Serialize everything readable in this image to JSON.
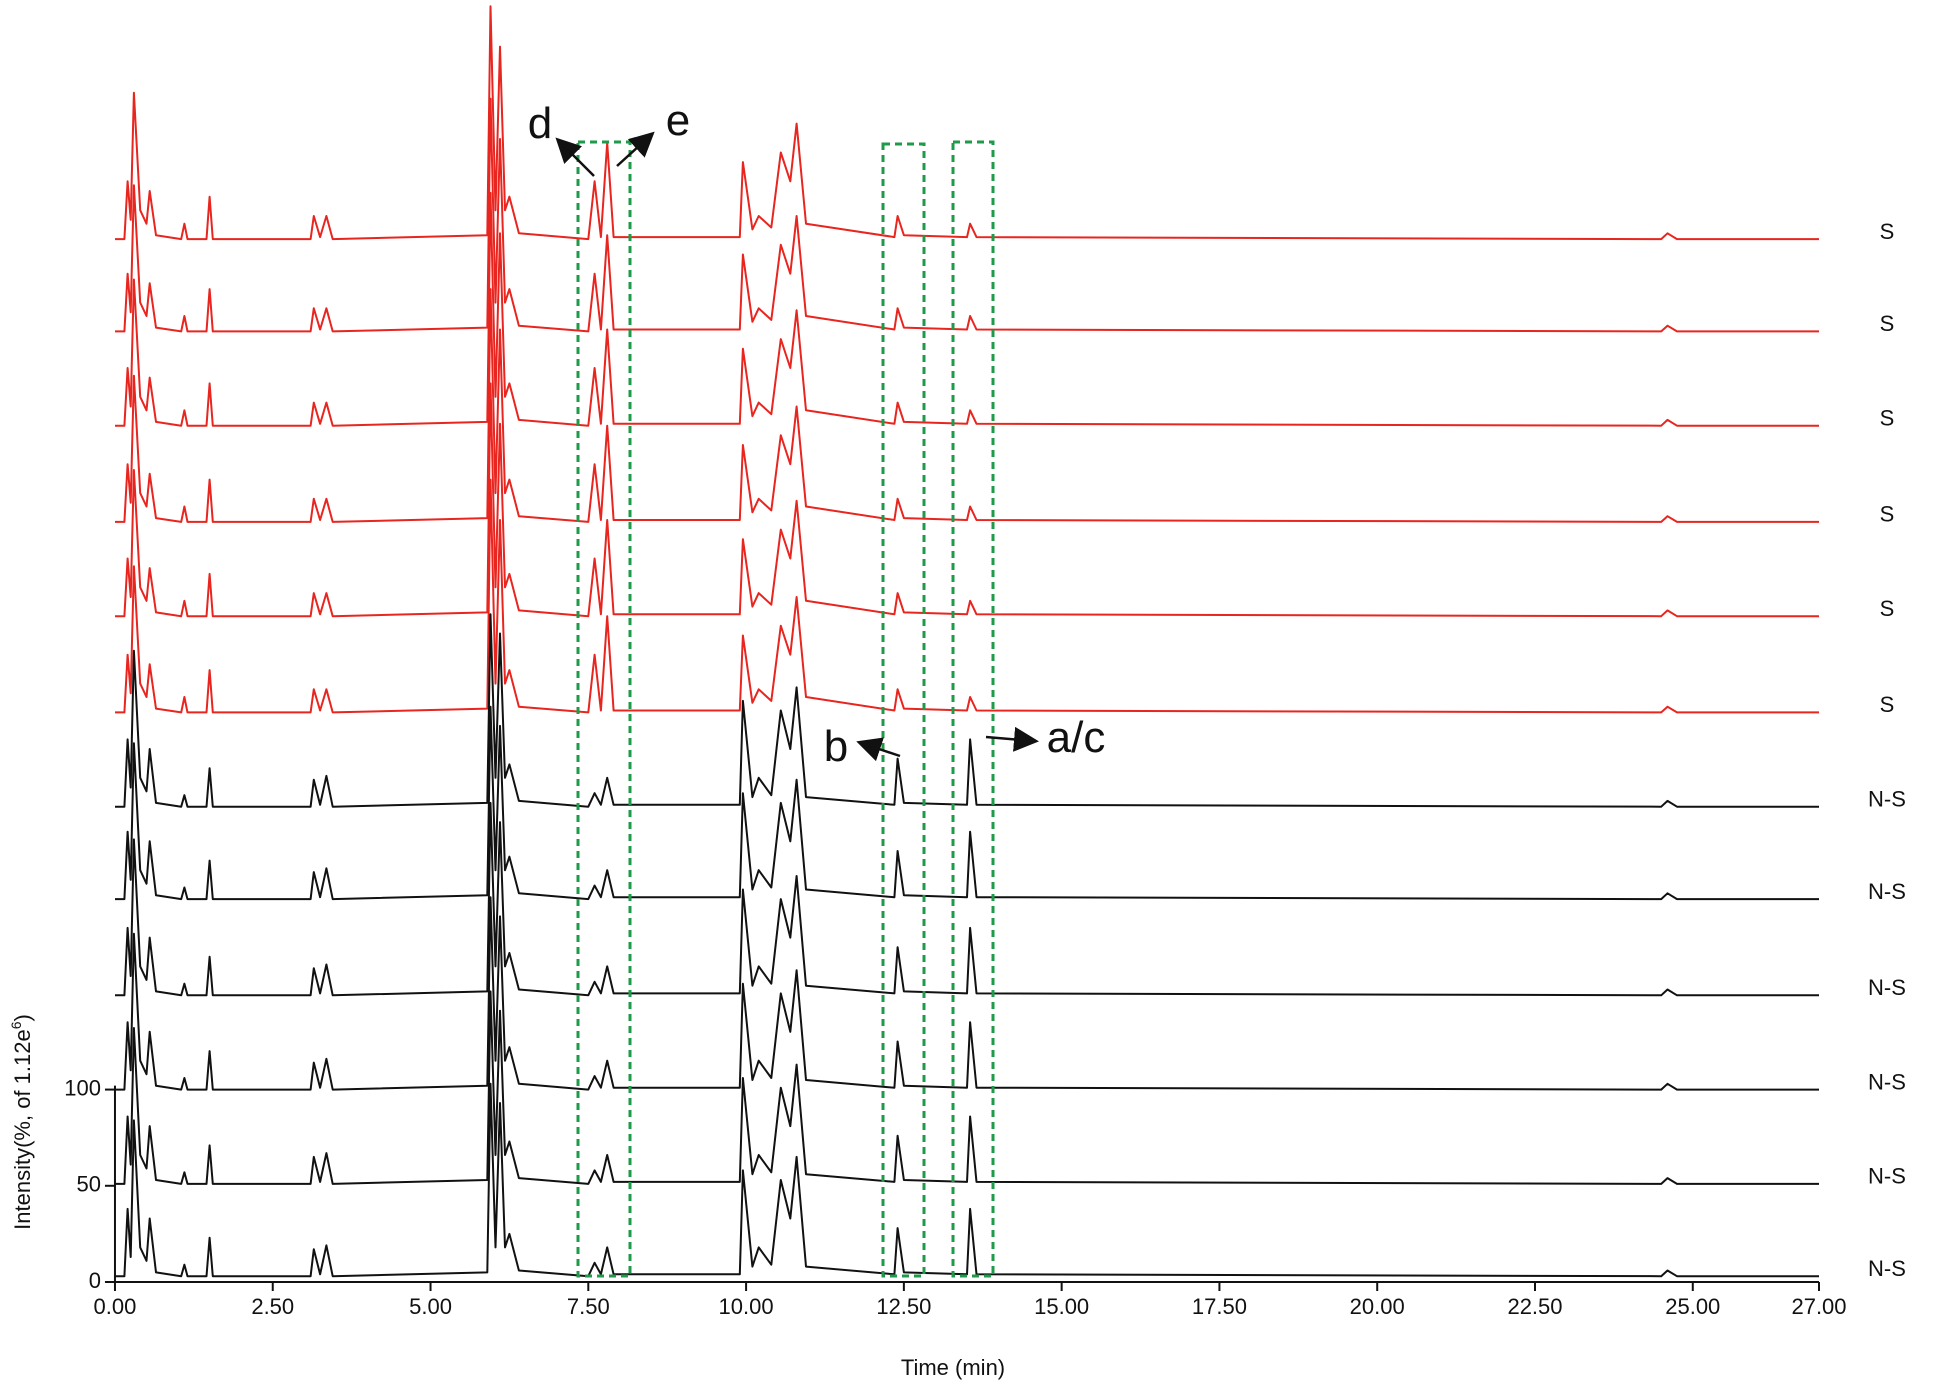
{
  "chart_data": {
    "type": "line",
    "x_label": "Time (min)",
    "y_label": "Intensity(%, of 1.12e",
    "y_label_sup": "6",
    "y_label_end": ")",
    "xlim": [
      -0.15,
      27
    ],
    "ylim": [
      0,
      660
    ],
    "xticks": [
      {
        "value": 0,
        "label": "0.00"
      },
      {
        "value": 2.5,
        "label": "2.50"
      },
      {
        "value": 5,
        "label": "5.00"
      },
      {
        "value": 7.5,
        "label": "7.50"
      },
      {
        "value": 10,
        "label": "10.00"
      },
      {
        "value": 12.5,
        "label": "12.50"
      },
      {
        "value": 15,
        "label": "15.00"
      },
      {
        "value": 17.5,
        "label": "17.50"
      },
      {
        "value": 20,
        "label": "20.00"
      },
      {
        "value": 22.5,
        "label": "22.50"
      },
      {
        "value": 25,
        "label": "25.00"
      },
      {
        "value": 27,
        "label": "27.00"
      }
    ],
    "yticks": [
      0,
      50,
      100
    ],
    "annotations": [
      "d",
      "e",
      "b",
      "a/c"
    ],
    "x": [
      0,
      0.15,
      0.2,
      0.25,
      0.3,
      0.4,
      0.5,
      0.55,
      0.65,
      1.05,
      1.1,
      1.15,
      1.45,
      1.5,
      1.55,
      3.1,
      3.15,
      3.25,
      3.35,
      3.45,
      5.9,
      5.95,
      6.03,
      6.1,
      6.18,
      6.25,
      6.4,
      7.5,
      7.6,
      7.7,
      7.8,
      7.9,
      9.9,
      9.95,
      10.1,
      10.2,
      10.4,
      10.55,
      10.7,
      10.8,
      10.95,
      12.35,
      12.4,
      12.5,
      13.5,
      13.55,
      13.65,
      24.5,
      24.6,
      24.75,
      27
    ],
    "series": [
      {
        "name": "S",
        "color": "#e8251f",
        "values": [
          542,
          542,
          572,
          552,
          618,
          557,
          550,
          567,
          544,
          542,
          550,
          542,
          542,
          564,
          542,
          542,
          554,
          543,
          554,
          542,
          544,
          663,
          557,
          642,
          557,
          564,
          545,
          542,
          572,
          543,
          592,
          543,
          543,
          582,
          547,
          554,
          548,
          587,
          572,
          602,
          550,
          543,
          554,
          544,
          543,
          550,
          543,
          542,
          545,
          542,
          542
        ]
      },
      {
        "name": "S",
        "color": "#e8251f",
        "values": [
          494,
          494,
          524,
          504,
          570,
          509,
          502,
          519,
          496,
          494,
          502,
          494,
          494,
          516,
          494,
          494,
          506,
          495,
          506,
          494,
          496,
          615,
          509,
          594,
          509,
          516,
          497,
          494,
          524,
          495,
          544,
          495,
          495,
          534,
          499,
          506,
          500,
          539,
          524,
          554,
          502,
          495,
          506,
          496,
          495,
          502,
          495,
          494,
          497,
          494,
          494
        ]
      },
      {
        "name": "S",
        "color": "#e8251f",
        "values": [
          445,
          445,
          475,
          455,
          521,
          460,
          453,
          470,
          447,
          445,
          453,
          445,
          445,
          467,
          445,
          445,
          457,
          446,
          457,
          445,
          447,
          566,
          460,
          545,
          460,
          467,
          448,
          445,
          475,
          446,
          495,
          446,
          446,
          485,
          450,
          457,
          451,
          490,
          475,
          505,
          453,
          446,
          457,
          447,
          446,
          453,
          446,
          445,
          448,
          445,
          445
        ]
      },
      {
        "name": "S",
        "color": "#e8251f",
        "values": [
          395,
          395,
          425,
          405,
          471,
          410,
          403,
          420,
          397,
          395,
          403,
          395,
          395,
          417,
          395,
          395,
          407,
          396,
          407,
          395,
          397,
          516,
          410,
          495,
          410,
          417,
          398,
          395,
          425,
          396,
          445,
          396,
          396,
          435,
          400,
          407,
          401,
          440,
          425,
          455,
          403,
          396,
          407,
          397,
          396,
          403,
          396,
          395,
          398,
          395,
          395
        ]
      },
      {
        "name": "S",
        "color": "#e8251f",
        "values": [
          346,
          346,
          376,
          356,
          422,
          361,
          354,
          371,
          348,
          346,
          354,
          346,
          346,
          368,
          346,
          346,
          358,
          347,
          358,
          346,
          348,
          467,
          361,
          446,
          361,
          368,
          349,
          346,
          376,
          347,
          396,
          347,
          347,
          386,
          351,
          358,
          352,
          391,
          376,
          406,
          354,
          347,
          358,
          348,
          347,
          354,
          347,
          346,
          349,
          346,
          346
        ]
      },
      {
        "name": "S",
        "color": "#e8251f",
        "values": [
          296,
          296,
          326,
          306,
          372,
          311,
          304,
          321,
          298,
          296,
          304,
          296,
          296,
          318,
          296,
          296,
          308,
          297,
          308,
          296,
          298,
          417,
          311,
          396,
          311,
          318,
          299,
          296,
          326,
          297,
          346,
          297,
          297,
          336,
          301,
          308,
          302,
          341,
          326,
          356,
          304,
          297,
          308,
          298,
          297,
          304,
          297,
          296,
          299,
          296,
          296
        ]
      },
      {
        "name": "N-S",
        "color": "#111111",
        "values": [
          247,
          247,
          282,
          257,
          328,
          262,
          255,
          277,
          249,
          247,
          253,
          247,
          247,
          267,
          247,
          247,
          261,
          248,
          263,
          247,
          249,
          347,
          262,
          337,
          262,
          269,
          250,
          247,
          254,
          248,
          262,
          248,
          248,
          302,
          252,
          262,
          253,
          297,
          277,
          309,
          252,
          248,
          272,
          249,
          248,
          282,
          248,
          247,
          250,
          247,
          247
        ]
      },
      {
        "name": "N-S",
        "color": "#111111",
        "values": [
          199,
          199,
          234,
          209,
          280,
          214,
          207,
          229,
          201,
          199,
          205,
          199,
          199,
          219,
          199,
          199,
          213,
          200,
          215,
          199,
          201,
          299,
          214,
          289,
          214,
          221,
          202,
          199,
          206,
          200,
          214,
          200,
          200,
          254,
          204,
          214,
          205,
          249,
          229,
          261,
          204,
          200,
          224,
          201,
          200,
          234,
          200,
          199,
          202,
          199,
          199
        ]
      },
      {
        "name": "N-S",
        "color": "#111111",
        "values": [
          149,
          149,
          184,
          159,
          230,
          164,
          157,
          179,
          151,
          149,
          155,
          149,
          149,
          169,
          149,
          149,
          163,
          150,
          165,
          149,
          151,
          249,
          164,
          239,
          164,
          171,
          152,
          149,
          156,
          150,
          164,
          150,
          150,
          204,
          154,
          164,
          155,
          199,
          179,
          211,
          154,
          150,
          174,
          151,
          150,
          184,
          150,
          149,
          152,
          149,
          149
        ]
      },
      {
        "name": "N-S",
        "color": "#111111",
        "values": [
          100,
          100,
          135,
          110,
          181,
          115,
          108,
          130,
          102,
          100,
          106,
          100,
          100,
          120,
          100,
          100,
          114,
          101,
          116,
          100,
          102,
          200,
          115,
          190,
          115,
          122,
          103,
          100,
          107,
          101,
          115,
          101,
          101,
          155,
          105,
          115,
          106,
          150,
          130,
          162,
          105,
          101,
          125,
          102,
          101,
          135,
          101,
          100,
          103,
          100,
          100
        ]
      },
      {
        "name": "N-S",
        "color": "#111111",
        "values": [
          51,
          51,
          86,
          61,
          132,
          66,
          59,
          81,
          53,
          51,
          57,
          51,
          51,
          71,
          51,
          51,
          65,
          52,
          67,
          51,
          53,
          151,
          66,
          141,
          66,
          73,
          54,
          51,
          58,
          52,
          66,
          52,
          52,
          106,
          56,
          66,
          57,
          101,
          81,
          113,
          56,
          52,
          76,
          53,
          52,
          86,
          52,
          51,
          54,
          51,
          51
        ]
      },
      {
        "name": "N-S",
        "color": "#111111",
        "values": [
          3,
          3,
          38,
          13,
          84,
          18,
          11,
          33,
          5,
          3,
          9,
          3,
          3,
          23,
          3,
          3,
          17,
          4,
          19,
          3,
          5,
          103,
          18,
          93,
          18,
          25,
          6,
          3,
          10,
          4,
          18,
          4,
          4,
          58,
          8,
          18,
          9,
          53,
          33,
          65,
          8,
          4,
          28,
          5,
          4,
          38,
          4,
          3,
          6,
          3,
          3
        ]
      }
    ]
  }
}
